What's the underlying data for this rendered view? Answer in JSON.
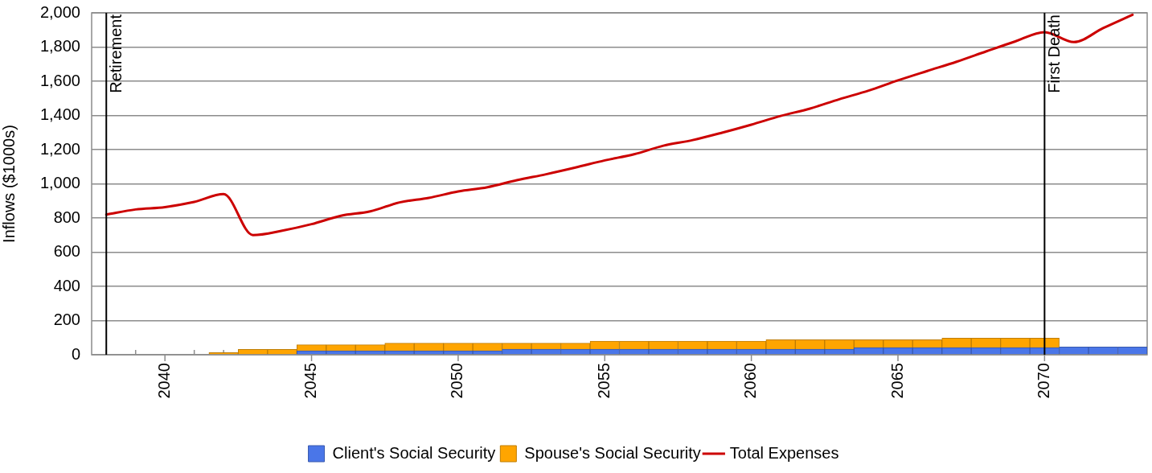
{
  "chart_data": {
    "type": "bar",
    "stacked": true,
    "x": [
      2038,
      2039,
      2040,
      2041,
      2042,
      2043,
      2044,
      2045,
      2046,
      2047,
      2048,
      2049,
      2050,
      2051,
      2052,
      2053,
      2054,
      2055,
      2056,
      2057,
      2058,
      2059,
      2060,
      2061,
      2062,
      2063,
      2064,
      2065,
      2066,
      2067,
      2068,
      2069,
      2070,
      2071,
      2072,
      2073
    ],
    "series": [
      {
        "name": "Client's Social Security",
        "color": "#4a76e8",
        "values": [
          0,
          0,
          0,
          0,
          0,
          0,
          0,
          23,
          23,
          23,
          23,
          23,
          23,
          23,
          33,
          33,
          33,
          33,
          33,
          33,
          33,
          33,
          33,
          33,
          33,
          33,
          42,
          42,
          42,
          42,
          42,
          42,
          42,
          46,
          46,
          46
        ]
      },
      {
        "name": "Spouse's Social Security",
        "color": "#ffa500",
        "values": [
          0,
          0,
          0,
          0,
          12,
          31,
          31,
          35,
          35,
          35,
          45,
          45,
          45,
          45,
          35,
          35,
          35,
          47,
          47,
          47,
          47,
          47,
          47,
          55,
          55,
          55,
          46,
          46,
          46,
          55,
          55,
          55,
          55,
          0,
          0,
          0
        ]
      },
      {
        "name": "Total Expenses",
        "type": "line",
        "color": "#cc0000",
        "values": [
          820,
          850,
          864,
          894,
          940,
          700,
          726,
          764,
          813,
          839,
          891,
          918,
          955,
          980,
          1021,
          1056,
          1095,
          1137,
          1173,
          1223,
          1256,
          1299,
          1346,
          1397,
          1440,
          1495,
          1545,
          1605,
          1660,
          1714,
          1774,
          1833,
          1887,
          1829,
          1911,
          1989
        ]
      }
    ],
    "xlim": [
      2037.5,
      2073.5
    ],
    "xticks": [
      {
        "value": 2038,
        "label": null
      },
      {
        "value": 2039,
        "label": null
      },
      2040,
      {
        "value": 2041,
        "label": null
      },
      {
        "value": 2042,
        "label": null
      },
      {
        "value": 2043,
        "label": null
      },
      {
        "value": 2044,
        "label": null
      },
      2045,
      {
        "value": 2046,
        "label": null
      },
      {
        "value": 2047,
        "label": null
      },
      {
        "value": 2048,
        "label": null
      },
      {
        "value": 2049,
        "label": null
      },
      2050,
      {
        "value": 2051,
        "label": null
      },
      {
        "value": 2052,
        "label": null
      },
      {
        "value": 2053,
        "label": null
      },
      {
        "value": 2054,
        "label": null
      },
      2055,
      {
        "value": 2056,
        "label": null
      },
      {
        "value": 2057,
        "label": null
      },
      {
        "value": 2058,
        "label": null
      },
      {
        "value": 2059,
        "label": null
      },
      2060,
      {
        "value": 2061,
        "label": null
      },
      {
        "value": 2062,
        "label": null
      },
      {
        "value": 2063,
        "label": null
      },
      {
        "value": 2064,
        "label": null
      },
      2065,
      {
        "value": 2066,
        "label": null
      },
      {
        "value": 2067,
        "label": null
      },
      {
        "value": 2068,
        "label": null
      },
      {
        "value": 2069,
        "label": null
      },
      2070,
      {
        "value": 2071,
        "label": null
      },
      {
        "value": 2072,
        "label": null
      },
      {
        "value": 2073,
        "label": null
      }
    ],
    "ylim": [
      0,
      2000
    ],
    "yticks": [
      0,
      200,
      400,
      600,
      800,
      {
        "value": 1000,
        "label": "1,000"
      },
      {
        "value": 1200,
        "label": "1,200"
      },
      {
        "value": 1400,
        "label": "1,400"
      },
      {
        "value": 1600,
        "label": "1,600"
      },
      {
        "value": 1800,
        "label": "1,800"
      },
      {
        "value": 2000,
        "label": "2,000"
      }
    ],
    "ylabel": "Inflows ($1000s)",
    "grid": "y",
    "legend": "bottom",
    "ref_lines": [
      {
        "axis": "x",
        "value": 2038,
        "label": "Retirement",
        "color": "#000000"
      },
      {
        "axis": "x",
        "value": 2070,
        "label": "First Death",
        "color": "#000000"
      }
    ]
  }
}
